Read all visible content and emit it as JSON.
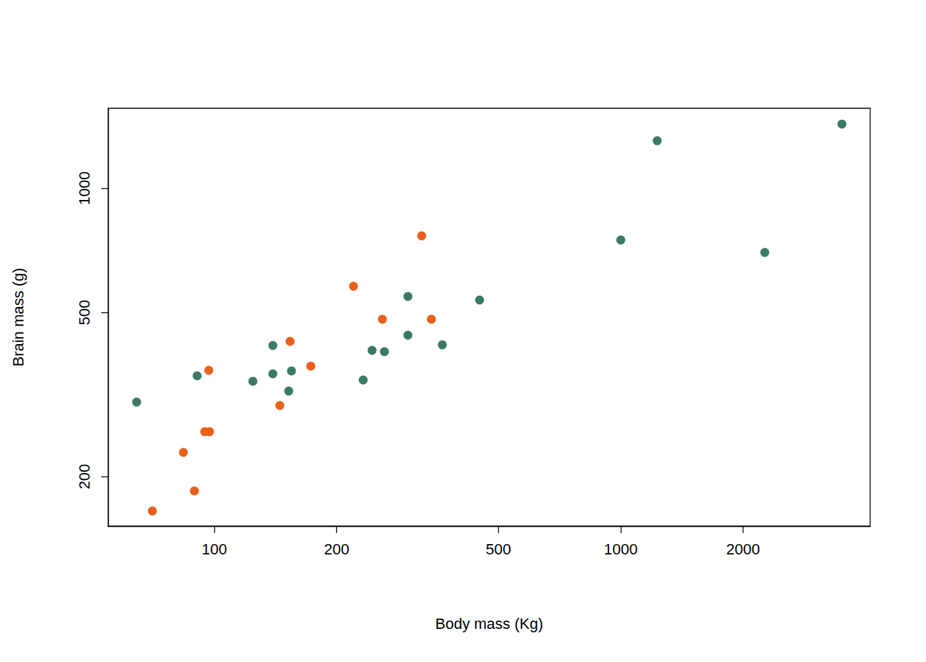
{
  "chart_data": {
    "type": "scatter",
    "x_label": "Body mass (Kg)",
    "y_label": "Brain mass (g)",
    "log": true,
    "grid": false,
    "marker": "circle",
    "xlim": [
      54.8,
      4108
    ],
    "ylim": [
      151.6,
      1563
    ],
    "xticks": [
      100,
      200,
      500,
      1000,
      2000
    ],
    "yticks": [
      200,
      500,
      1000
    ],
    "series": [
      {
        "color": "#e8601c",
        "x": [
          70.4,
          89.3,
          83.9,
          94.7,
          97.3,
          96.9,
          144.9,
          153.6,
          172.7,
          220.0,
          259.1,
          323.7,
          342.0
        ],
        "y": [
          165.0,
          184.5,
          228.8,
          256.9,
          256.9,
          361.9,
          297.3,
          425.4,
          370.4,
          578.8,
          481.3,
          766.7,
          481.3
        ]
      },
      {
        "color": "#3b7a66",
        "x": [
          64.4,
          90.7,
          124.4,
          139.3,
          139.3,
          152.4,
          154.8,
          232.4,
          244.4,
          262.1,
          299.4,
          299.4,
          363.9,
          449.4,
          1000,
          1229,
          2261,
          3500
        ],
        "y": [
          303.1,
          351.0,
          340.3,
          415.6,
          354.9,
          322.4,
          360.6,
          342.8,
          404.6,
          401.6,
          546.4,
          440.4,
          417.3,
          535.9,
          749.2,
          1304,
          699.0,
          1431
        ]
      }
    ]
  }
}
